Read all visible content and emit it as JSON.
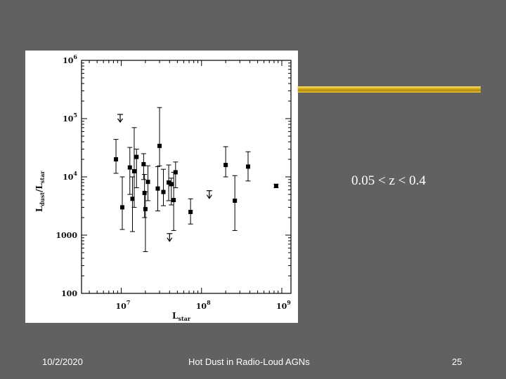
{
  "footer": {
    "date": "10/2/2020",
    "title": "Hot Dust in Radio-Loud AGNs",
    "page": "25"
  },
  "annotation": "0.05 < z < 0.4",
  "colors": {
    "background": "#616161",
    "accent_bar": "#d9b21e",
    "marker": "#000000"
  },
  "chart_data": {
    "type": "scatter",
    "title": "",
    "xlabel": {
      "main": "L",
      "sub": "star"
    },
    "ylabel": {
      "main": "L",
      "sub1": "dust",
      "sep": "/L",
      "sub2": "star"
    },
    "x_scale": "log",
    "y_scale": "log",
    "xlim": [
      3200000,
      1300000000
    ],
    "ylim": [
      100,
      1000000
    ],
    "x_ticks": [
      {
        "value": 10000000,
        "base": "10",
        "exp": "7"
      },
      {
        "value": 100000000,
        "base": "10",
        "exp": "8"
      },
      {
        "value": 1000000000,
        "base": "10",
        "exp": "9"
      }
    ],
    "y_ticks": [
      {
        "value": 100,
        "label": "100"
      },
      {
        "value": 1000,
        "label": "1000"
      },
      {
        "value": 10000,
        "base": "10",
        "exp": "4"
      },
      {
        "value": 100000,
        "base": "10",
        "exp": "5"
      },
      {
        "value": 1000000,
        "base": "10",
        "exp": "6"
      }
    ],
    "grid": false,
    "points": [
      {
        "x": 8600000.0,
        "y": 20000,
        "ylo": 11500,
        "yhi": 44000
      },
      {
        "x": 10300000.0,
        "y": 3000,
        "ylo": 1250,
        "yhi": 10000
      },
      {
        "x": 12800000.0,
        "y": 14500,
        "ylo": 5000,
        "yhi": 32000
      },
      {
        "x": 13800000.0,
        "y": 4200,
        "ylo": 1150,
        "yhi": 10000
      },
      {
        "x": 14500000.0,
        "y": 12500,
        "ylo": 3000,
        "yhi": 70000
      },
      {
        "x": 15500000.0,
        "y": 22000,
        "ylo": 6500,
        "yhi": 30000
      },
      {
        "x": 19000000.0,
        "y": 16500,
        "ylo": 9000,
        "yhi": 25000
      },
      {
        "x": 19500000.0,
        "y": 5300,
        "ylo": 2000,
        "yhi": 11000
      },
      {
        "x": 20000000.0,
        "y": 2800,
        "ylo": 520,
        "yhi": 5500
      },
      {
        "x": 21500000.0,
        "y": 8200,
        "ylo": 3900,
        "yhi": 15500
      },
      {
        "x": 28500000.0,
        "y": 6300,
        "ylo": 2600,
        "yhi": 15000
      },
      {
        "x": 30000000.0,
        "y": 34000,
        "ylo": 15500,
        "yhi": 155000
      },
      {
        "x": 33500000.0,
        "y": 5500,
        "ylo": 3200,
        "yhi": 13500
      },
      {
        "x": 39000000.0,
        "y": 8000,
        "ylo": 3900,
        "yhi": 16000
      },
      {
        "x": 42000000.0,
        "y": 7500,
        "ylo": 3300,
        "yhi": 9500
      },
      {
        "x": 45000000.0,
        "y": 4000,
        "ylo": 1200,
        "yhi": 12000
      },
      {
        "x": 47500000.0,
        "y": 12000,
        "ylo": 6500,
        "yhi": 18000
      },
      {
        "x": 73000000.0,
        "y": 2500,
        "ylo": 1550,
        "yhi": 4200
      },
      {
        "x": 200000000.0,
        "y": 16000,
        "ylo": 10000,
        "yhi": 33000
      },
      {
        "x": 260000000.0,
        "y": 3900,
        "ylo": 1200,
        "yhi": 10500
      },
      {
        "x": 380000000.0,
        "y": 15000,
        "ylo": 8500,
        "yhi": 27000
      },
      {
        "x": 850000000.0,
        "y": 7000,
        "ylo": 6500,
        "yhi": 7500
      }
    ],
    "upper_limits": [
      {
        "x": 9700000.0,
        "y": 100000
      },
      {
        "x": 125000000.0,
        "y": 4900
      },
      {
        "x": 40000000.0,
        "y": 900
      }
    ]
  }
}
